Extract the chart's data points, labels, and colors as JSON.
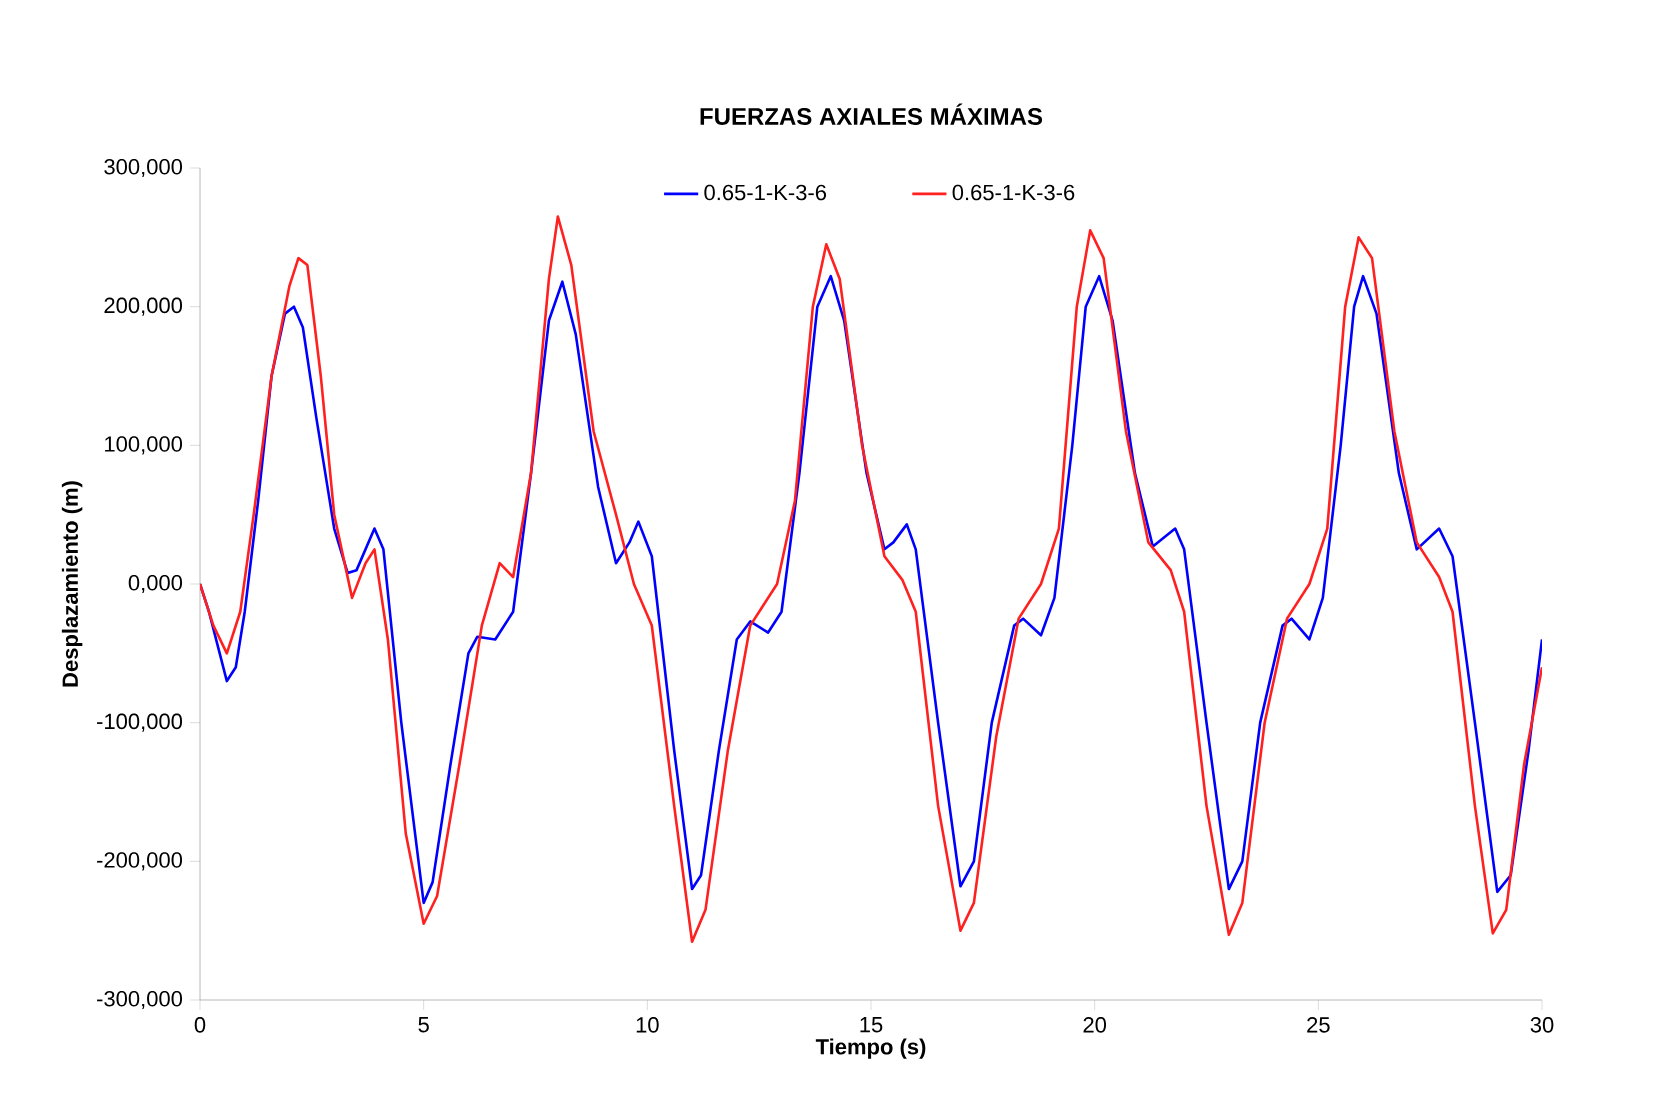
{
  "chart_data": {
    "type": "line",
    "title": "FUERZAS AXIALES MÁXIMAS",
    "xlabel": "Tiempo  (s)",
    "ylabel": "Desplazamiento  (m)",
    "xlim": [
      0,
      30
    ],
    "xticks": [
      0,
      5,
      10,
      15,
      20,
      25,
      30
    ],
    "ylim": [
      -300000,
      300000
    ],
    "yticks": [
      {
        "value": -300000,
        "label": "-300,000"
      },
      {
        "value": -200000,
        "label": "-200,000"
      },
      {
        "value": -100000,
        "label": "-100,000"
      },
      {
        "value": 0,
        "label": "0,000"
      },
      {
        "value": 100000,
        "label": "100,000"
      },
      {
        "value": 200000,
        "label": "200,000"
      },
      {
        "value": 300000,
        "label": "300,000"
      }
    ],
    "grid": false,
    "legend": "top",
    "marker": "none",
    "line_style": "solid",
    "series": [
      {
        "name": "0.65-1-K-3-6",
        "color": "#0000ff",
        "x": [
          0,
          0.2,
          0.4,
          0.6,
          0.8,
          1.0,
          1.3,
          1.6,
          1.9,
          2.1,
          2.3,
          2.6,
          3.0,
          3.3,
          3.5,
          3.9,
          4.1,
          4.5,
          5.0,
          5.2,
          5.6,
          6.0,
          6.2,
          6.6,
          7.0,
          7.4,
          7.8,
          8.1,
          8.4,
          8.9,
          9.3,
          9.6,
          9.8,
          10.1,
          10.6,
          11.0,
          11.2,
          11.6,
          12.0,
          12.3,
          12.7,
          13.0,
          13.4,
          13.8,
          14.1,
          14.4,
          14.9,
          15.3,
          15.5,
          15.8,
          16.0,
          16.5,
          17.0,
          17.3,
          17.7,
          18.2,
          18.4,
          18.8,
          19.1,
          19.5,
          19.8,
          20.1,
          20.4,
          20.9,
          21.3,
          21.8,
          22.0,
          22.5,
          23.0,
          23.3,
          23.7,
          24.2,
          24.4,
          24.8,
          25.1,
          25.5,
          25.8,
          26.0,
          26.3,
          26.8,
          27.2,
          27.7,
          28.0,
          28.5,
          29.0,
          29.3,
          29.7,
          30.0
        ],
        "values": [
          0,
          -20000,
          -45000,
          -70000,
          -60000,
          -20000,
          60000,
          150000,
          195000,
          200000,
          185000,
          120000,
          40000,
          8000,
          10000,
          40000,
          25000,
          -100000,
          -230000,
          -215000,
          -130000,
          -50000,
          -38000,
          -40000,
          -20000,
          80000,
          190000,
          218000,
          180000,
          70000,
          15000,
          30000,
          45000,
          20000,
          -120000,
          -220000,
          -210000,
          -120000,
          -40000,
          -27000,
          -35000,
          -20000,
          80000,
          200000,
          222000,
          190000,
          80000,
          25000,
          30000,
          43000,
          25000,
          -100000,
          -218000,
          -200000,
          -100000,
          -30000,
          -25000,
          -37000,
          -10000,
          100000,
          200000,
          222000,
          190000,
          80000,
          27000,
          40000,
          25000,
          -100000,
          -220000,
          -200000,
          -100000,
          -30000,
          -25000,
          -40000,
          -10000,
          100000,
          200000,
          222000,
          195000,
          80000,
          25000,
          40000,
          20000,
          -100000,
          -222000,
          -210000,
          -120000,
          -40000
        ]
      },
      {
        "name": "0.65-1-K-3-6",
        "color": "#ff2020",
        "x": [
          0,
          0.3,
          0.6,
          0.9,
          1.2,
          1.6,
          2.0,
          2.2,
          2.4,
          2.7,
          3.0,
          3.4,
          3.7,
          3.9,
          4.2,
          4.6,
          5.0,
          5.3,
          5.8,
          6.3,
          6.7,
          7.0,
          7.4,
          7.8,
          8.0,
          8.3,
          8.8,
          9.3,
          9.7,
          10.1,
          10.6,
          11.0,
          11.3,
          11.8,
          12.3,
          12.9,
          13.3,
          13.7,
          14.0,
          14.3,
          14.8,
          15.3,
          15.7,
          16.0,
          16.5,
          17.0,
          17.3,
          17.8,
          18.3,
          18.8,
          19.2,
          19.6,
          19.9,
          20.2,
          20.7,
          21.2,
          21.7,
          22.0,
          22.5,
          23.0,
          23.3,
          23.8,
          24.3,
          24.8,
          25.2,
          25.6,
          25.9,
          26.2,
          26.7,
          27.2,
          27.7,
          28.0,
          28.5,
          28.9,
          29.2,
          29.6,
          30.0
        ],
        "values": [
          0,
          -30000,
          -50000,
          -20000,
          50000,
          150000,
          215000,
          235000,
          230000,
          150000,
          50000,
          -10000,
          15000,
          25000,
          -40000,
          -180000,
          -245000,
          -225000,
          -130000,
          -30000,
          15000,
          5000,
          80000,
          220000,
          265000,
          230000,
          110000,
          50000,
          0,
          -30000,
          -160000,
          -258000,
          -235000,
          -120000,
          -30000,
          0,
          60000,
          200000,
          245000,
          220000,
          100000,
          20000,
          3000,
          -20000,
          -160000,
          -250000,
          -230000,
          -110000,
          -25000,
          0,
          40000,
          200000,
          255000,
          235000,
          110000,
          30000,
          10000,
          -20000,
          -160000,
          -253000,
          -230000,
          -100000,
          -25000,
          0,
          40000,
          200000,
          250000,
          235000,
          110000,
          30000,
          5000,
          -20000,
          -160000,
          -252000,
          -235000,
          -130000,
          -60000
        ]
      }
    ]
  }
}
